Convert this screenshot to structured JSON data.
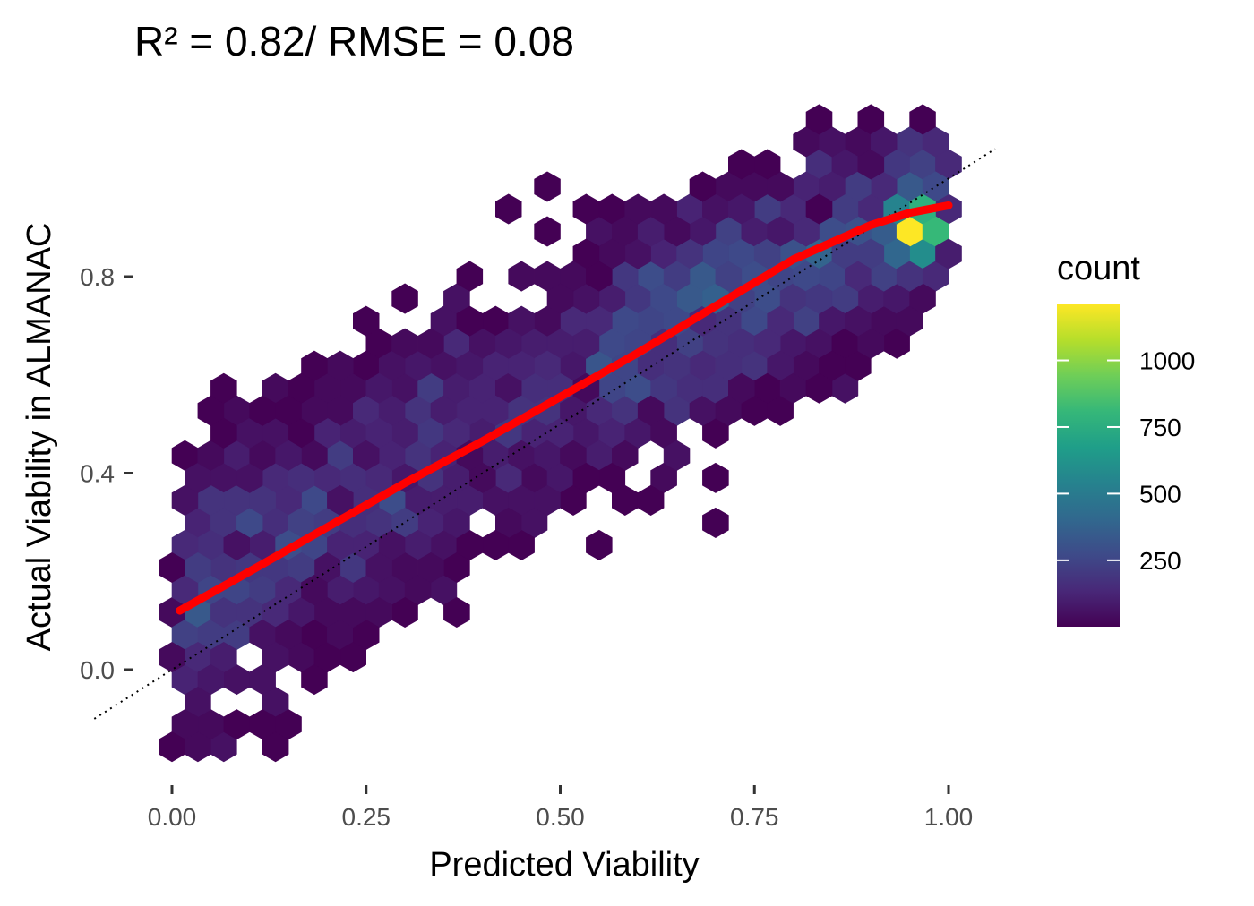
{
  "chart_data": {
    "type": "hexbin",
    "title": "R² = 0.82/ RMSE = 0.08",
    "xlabel": "Predicted Viability",
    "ylabel": "Actual Viability in ALMANAC",
    "xlim": [
      -0.1,
      1.07
    ],
    "ylim": [
      -0.22,
      1.12
    ],
    "x_ticks": [
      {
        "value": 0.0,
        "label": "0.00"
      },
      {
        "value": 0.25,
        "label": "0.25"
      },
      {
        "value": 0.5,
        "label": "0.50"
      },
      {
        "value": 0.75,
        "label": "0.75"
      },
      {
        "value": 1.0,
        "label": "1.00"
      }
    ],
    "y_ticks": [
      {
        "value": 0.0,
        "label": "0.0"
      },
      {
        "value": 0.4,
        "label": "0.4"
      },
      {
        "value": 0.8,
        "label": "0.8"
      }
    ],
    "grid": false,
    "legend": {
      "title": "count",
      "position": "right",
      "min": 1,
      "max": 1210,
      "ticks": [
        {
          "value": 250,
          "label": "250"
        },
        {
          "value": 500,
          "label": "500"
        },
        {
          "value": 750,
          "label": "750"
        },
        {
          "value": 1000,
          "label": "1000"
        }
      ],
      "colormap": [
        "#440154",
        "#482878",
        "#3e4a89",
        "#31688e",
        "#26828e",
        "#1f9e89",
        "#35b779",
        "#6ece58",
        "#b5de2b",
        "#fde725"
      ]
    },
    "hexbins": {
      "x_bins": 30,
      "x_range": [
        0.0,
        1.0
      ],
      "y_range": [
        -0.18,
        1.12
      ],
      "point_count": 2200,
      "cluster_points": 220
    },
    "smooth_curve": {
      "color": "#ff0000",
      "x": [
        0.01,
        0.1,
        0.2,
        0.3,
        0.4,
        0.5,
        0.6,
        0.7,
        0.8,
        0.9,
        0.95,
        1.0
      ],
      "y": [
        0.12,
        0.2,
        0.29,
        0.38,
        0.465,
        0.555,
        0.645,
        0.74,
        0.835,
        0.905,
        0.93,
        0.945
      ]
    },
    "reference_line": {
      "style": "dotted",
      "color": "#000000",
      "slope": 1,
      "intercept": 0,
      "x_range": [
        -0.1,
        1.06
      ]
    }
  }
}
